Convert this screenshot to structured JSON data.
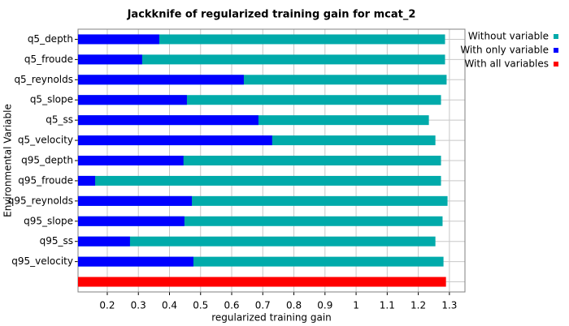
{
  "chart_data": {
    "type": "bar",
    "orientation": "horizontal",
    "overlap": true,
    "title": "Jackknife of regularized training gain for mcat_2",
    "x_label": "regularized training gain",
    "y_label": "Environmental Variable",
    "categories": [
      "q5_depth",
      "q5_froude",
      "q5_reynolds",
      "q5_slope",
      "q5_ss",
      "q5_velocity",
      "q95_depth",
      "q95_froude",
      "q95_reynolds",
      "q95_slope",
      "q95_ss",
      "q95_velocity",
      null
    ],
    "series": [
      {
        "name": "Without variable",
        "color": "#00aaaa",
        "values": [
          1.286,
          1.286,
          1.291,
          1.273,
          1.234,
          1.255,
          1.273,
          1.273,
          1.294,
          1.278,
          1.255,
          1.281,
          null
        ]
      },
      {
        "name": "With only variable",
        "color": "#0000ff",
        "values": [
          0.367,
          0.312,
          0.639,
          0.456,
          0.686,
          0.73,
          0.445,
          0.161,
          0.472,
          0.448,
          0.273,
          0.477,
          null
        ]
      },
      {
        "name": "With all variables",
        "color": "#ff0000",
        "values": [
          null,
          null,
          null,
          null,
          null,
          null,
          null,
          null,
          null,
          null,
          null,
          null,
          1.289
        ]
      }
    ],
    "xlim": [
      0.106,
      1.35
    ],
    "xticks": [
      0.2,
      0.3,
      0.4,
      0.5,
      0.6,
      0.7,
      0.8,
      0.9,
      1,
      1.1,
      1.2,
      1.3
    ],
    "grid": true,
    "legend": "right"
  }
}
